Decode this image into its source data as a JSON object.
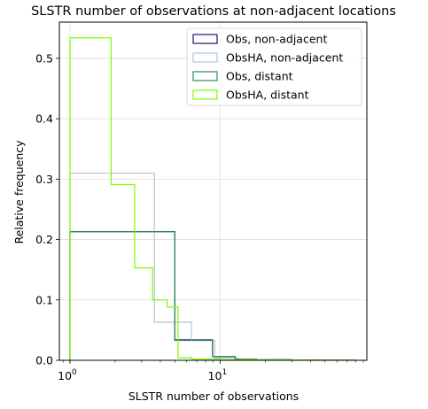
{
  "chart_data": {
    "type": "step-histogram",
    "title": "SLSTR number of observations at non-adjacent locations",
    "xlabel": "SLSTR number of observations",
    "ylabel": "Relative frequency",
    "x_scale": "log",
    "xlim": [
      0.85,
      95
    ],
    "ylim": [
      0,
      0.56
    ],
    "x_major_ticks": [
      {
        "value": 1,
        "base": "10",
        "exp": "0"
      },
      {
        "value": 10,
        "base": "10",
        "exp": "1"
      }
    ],
    "y_ticks": [
      {
        "value": 0.0,
        "label": "0.0"
      },
      {
        "value": 0.1,
        "label": "0.1"
      },
      {
        "value": 0.2,
        "label": "0.2"
      },
      {
        "value": 0.3,
        "label": "0.3"
      },
      {
        "value": 0.4,
        "label": "0.4"
      },
      {
        "value": 0.5,
        "label": "0.5"
      }
    ],
    "grid": true,
    "legend_position": "top-right",
    "series": [
      {
        "name": "Obs, non-adjacent",
        "color": "#191970",
        "edges": [
          1,
          1.71,
          2.93,
          5.0,
          8.9,
          12.6,
          17.5,
          30,
          50,
          80
        ],
        "values": [
          0.213,
          0.213,
          0.213,
          0.034,
          0.006,
          0.002,
          0.001,
          0.0005,
          0.0003
        ]
      },
      {
        "name": "ObsHA, non-adjacent",
        "color": "#b0c4de",
        "edges": [
          1,
          3.65,
          6.45,
          9.2,
          13.0,
          20,
          35,
          60,
          80
        ],
        "values": [
          0.31,
          0.063,
          0.033,
          0.004,
          0.001,
          0.0005,
          0.0003,
          0.0002
        ]
      },
      {
        "name": "Obs, distant",
        "color": "#2e8b57",
        "edges": [
          1,
          1.71,
          2.93,
          5.0,
          8.9,
          12.6,
          17.5,
          30,
          50,
          80
        ],
        "values": [
          0.213,
          0.213,
          0.213,
          0.033,
          0.006,
          0.002,
          0.001,
          0.0005,
          0.0003
        ]
      },
      {
        "name": "ObsHA, distant",
        "color": "#7cfc00",
        "edges": [
          1,
          1.88,
          2.7,
          3.55,
          4.45,
          5.25,
          6.5,
          10,
          20,
          40,
          80
        ],
        "values": [
          0.534,
          0.291,
          0.153,
          0.1,
          0.088,
          0.004,
          0.002,
          0.001,
          0.0005,
          0.0003
        ]
      }
    ]
  }
}
